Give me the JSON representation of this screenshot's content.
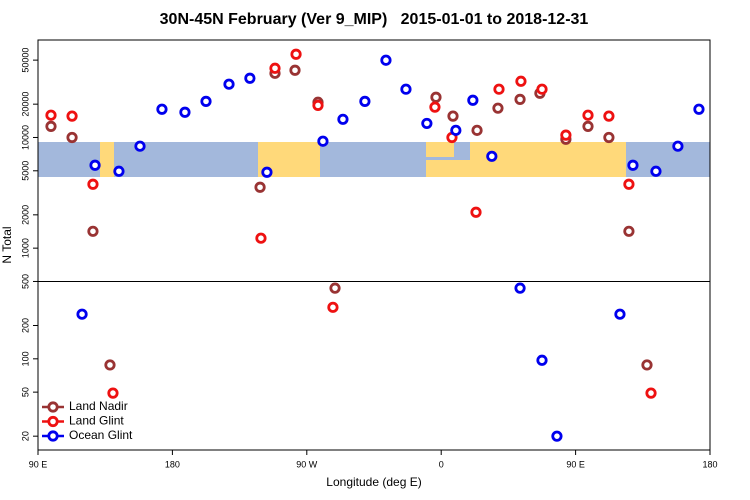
{
  "chart_data": {
    "type": "scatter",
    "title": "30N-45N February (Ver 9_MIP)   2015-01-01 to 2018-12-31",
    "x_label": "Longitude (deg E)",
    "y_label": "N Total",
    "y_log": true,
    "xlim": [
      90,
      540
    ],
    "ylim": [
      15,
      76000
    ],
    "xticks": [
      {
        "value": 90,
        "label": "90 E"
      },
      180,
      {
        "value": 270,
        "label": "90 W"
      },
      {
        "value": 360,
        "label": "0"
      },
      {
        "value": 450,
        "label": "90 E"
      },
      {
        "value": 540,
        "label": "180"
      }
    ],
    "yticks": [
      20,
      50,
      100,
      200,
      500,
      1000,
      2000,
      5000,
      10000,
      20000,
      50000
    ],
    "hline": 500,
    "legend": "bottom-left",
    "series": [
      {
        "name": "Land Nadir",
        "color": "#993333",
        "x": [
          98.7,
          112.8,
          126.8,
          138.2,
          238.7,
          248.7,
          262.1,
          277.5,
          288.9,
          356.5,
          367.9,
          384.0,
          398.0,
          412.8,
          426.1,
          443.5,
          458.3,
          472.3,
          485.7,
          497.8
        ],
        "values": [
          12600,
          10000,
          1420,
          88,
          3550,
          38000,
          40500,
          20800,
          435,
          23100,
          15600,
          11600,
          18400,
          22100,
          25100,
          9640,
          12600,
          10000,
          1420,
          88
        ]
      },
      {
        "name": "Land Glint",
        "color": "#ee1111",
        "x": [
          98.7,
          112.8,
          126.8,
          140.2,
          239.3,
          248.7,
          262.8,
          277.5,
          287.5,
          355.8,
          367.2,
          383.3,
          398.7,
          413.4,
          427.5,
          443.5,
          458.3,
          472.3,
          485.7,
          500.5
        ],
        "values": [
          15900,
          15600,
          3780,
          49,
          1230,
          42200,
          56500,
          19500,
          292,
          18800,
          10000,
          2110,
          27300,
          32200,
          27300,
          10500,
          15900,
          15600,
          3780,
          49
        ]
      },
      {
        "name": "Ocean Glint",
        "color": "#0000ee",
        "x": [
          119.5,
          128.2,
          144.2,
          158.3,
          173.0,
          188.4,
          202.5,
          217.9,
          231.9,
          243.3,
          280.8,
          294.2,
          308.9,
          323.0,
          336.4,
          350.4,
          369.8,
          381.2,
          393.9,
          412.8,
          427.5,
          437.5,
          479.7,
          488.4,
          503.8,
          518.5,
          532.6
        ],
        "values": [
          253,
          5610,
          4950,
          8340,
          18000,
          16900,
          21200,
          30300,
          34300,
          4850,
          9250,
          14600,
          21200,
          49900,
          27300,
          13400,
          11600,
          21700,
          6760,
          435,
          97,
          20,
          253,
          5610,
          4950,
          8340,
          18000
        ]
      }
    ]
  }
}
